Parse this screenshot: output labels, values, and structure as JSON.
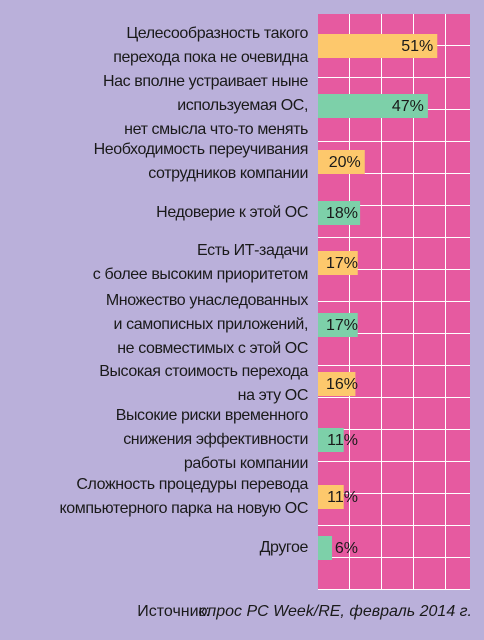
{
  "chart_data": {
    "type": "hbar",
    "categories": [
      [
        "Целесообразность такого",
        "перехода пока не очевидна"
      ],
      [
        "Нас вполне устраивает ныне",
        "используемая ОС,",
        "нет смысла что-то менять"
      ],
      [
        "Необходимость переучивания",
        "сотрудников компании"
      ],
      [
        "Недоверие к этой ОС"
      ],
      [
        "Есть ИТ-задачи",
        "с более высоким приоритетом"
      ],
      [
        "Множество унаследованных",
        "и самописных приложений,",
        "не совместимых с этой ОС"
      ],
      [
        "Высокая стоимость перехода",
        "на эту ОС"
      ],
      [
        "Высокие риски временного",
        "снижения эффективности",
        "работы компании"
      ],
      [
        "Сложность процедуры перевода",
        "компьютерного парка на новую ОС"
      ],
      [
        "Другое"
      ]
    ],
    "values": [
      51,
      47,
      20,
      18,
      17,
      17,
      16,
      11,
      11,
      6
    ],
    "value_labels": [
      "51%",
      "47%",
      "20%",
      "18%",
      "17%",
      "17%",
      "16%",
      "11%",
      "11%",
      "6%"
    ],
    "colors": [
      "#fdc86c",
      "#7dd0a9",
      "#fdc86c",
      "#7dd0a9",
      "#fdc86c",
      "#7dd0a9",
      "#fdc86c",
      "#7dd0a9",
      "#fdc86c",
      "#7dd0a9"
    ],
    "xlim": [
      0,
      65
    ],
    "source_label": "Источник:",
    "source_text": "опрос PC Week/RE, февраль 2014 г."
  }
}
